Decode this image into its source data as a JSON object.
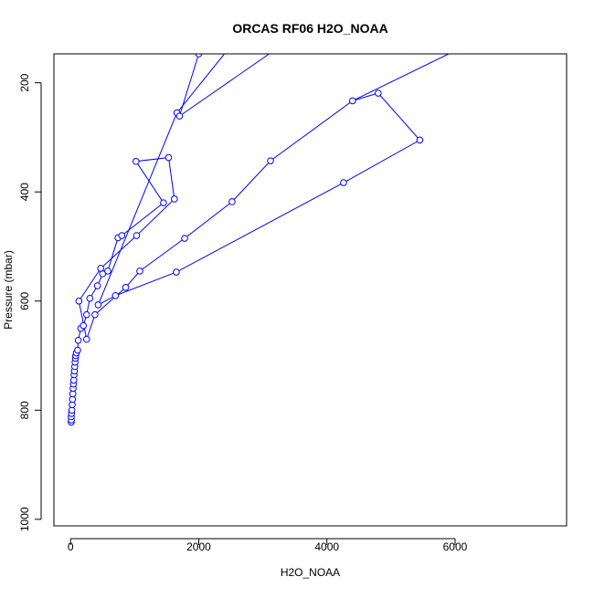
{
  "chart_data": {
    "type": "line",
    "title": "ORCAS RF06 H2O_NOAA",
    "xlabel": "H2O_NOAA",
    "ylabel": "Pressure (mbar)",
    "x_axis": {
      "ticks": [
        0,
        2000,
        4000,
        6000
      ],
      "range": [
        -260,
        7740
      ]
    },
    "y_axis": {
      "ticks": [
        200,
        400,
        600,
        800,
        1000
      ],
      "range": [
        1012,
        147
      ],
      "inverted": true
    },
    "grid": false,
    "legend": "none",
    "series": [
      {
        "color": "#0000ff",
        "marker": "open-circle",
        "points": [
          [
            10,
            822
          ],
          [
            12,
            818
          ],
          [
            11,
            812
          ],
          [
            14,
            806
          ],
          [
            20,
            800
          ],
          [
            25,
            790
          ],
          [
            30,
            780
          ],
          [
            35,
            770
          ],
          [
            40,
            760
          ],
          [
            45,
            752
          ],
          [
            50,
            745
          ],
          [
            55,
            735
          ],
          [
            60,
            728
          ],
          [
            65,
            720
          ],
          [
            70,
            712
          ],
          [
            75,
            705
          ],
          [
            80,
            700
          ],
          [
            90,
            695
          ],
          [
            110,
            690
          ],
          [
            120,
            672
          ],
          [
            160,
            650
          ],
          [
            200,
            645
          ],
          [
            250,
            625
          ],
          [
            300,
            595
          ],
          [
            420,
            572
          ],
          [
            500,
            550
          ],
          [
            580,
            545
          ],
          [
            740,
            484
          ],
          [
            800,
            480
          ],
          [
            1450,
            420
          ],
          [
            1020,
            344
          ],
          [
            1530,
            337
          ],
          [
            1620,
            413
          ],
          [
            1030,
            480
          ],
          [
            470,
            540
          ],
          [
            130,
            600
          ],
          [
            250,
            670
          ],
          [
            380,
            625
          ],
          [
            860,
            575
          ],
          [
            1080,
            545
          ],
          [
            1780,
            485
          ],
          [
            2520,
            418
          ],
          [
            3120,
            343
          ],
          [
            4400,
            233
          ],
          [
            4800,
            219
          ],
          [
            5450,
            305
          ],
          [
            4260,
            383
          ],
          [
            1650,
            547
          ],
          [
            700,
            590
          ],
          [
            430,
            607
          ],
          [
            1660,
            255
          ],
          [
            1700,
            261
          ],
          [
            2000,
            147
          ]
        ],
        "extra_segments": [
          {
            "from": [
              1660,
              255
            ],
            "to": [
              2400,
              147
            ]
          },
          {
            "from": [
              1700,
              261
            ],
            "to": [
              3100,
              147
            ]
          },
          {
            "from": [
              4400,
              233
            ],
            "to": [
              5900,
              147
            ]
          }
        ]
      }
    ]
  }
}
